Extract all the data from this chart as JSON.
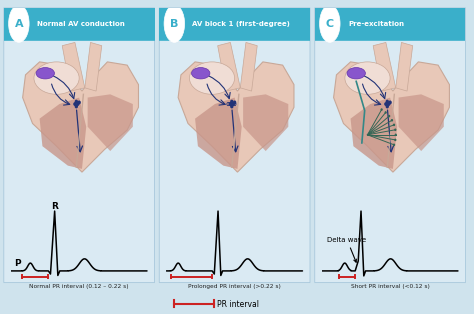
{
  "bg_color": "#cfe3ed",
  "panel_bg": "#daeaf3",
  "teal_header": "#3aafca",
  "header_text_color": "#ffffff",
  "panels": [
    {
      "label": "A",
      "title": "Normal AV conduction",
      "ecg_caption": "Normal PR interval (0.12 – 0.22 s)",
      "has_p_label": true,
      "has_r_label": true,
      "has_delta": false,
      "pr_type": "normal"
    },
    {
      "label": "B",
      "title": "AV block 1 (first-degree)",
      "ecg_caption": "Prolonged PR interval (>0.22 s)",
      "has_p_label": false,
      "has_r_label": false,
      "has_delta": false,
      "pr_type": "prolonged"
    },
    {
      "label": "C",
      "title": "Pre-excitation",
      "ecg_caption": "Short PR interval (<0.12 s)",
      "has_p_label": false,
      "has_r_label": false,
      "has_delta": true,
      "pr_type": "short"
    }
  ],
  "bottom_label": "PR interval",
  "bracket_color": "#cc2222",
  "heart_outer": "#e8c8b8",
  "heart_outer_border": "#c8a898",
  "heart_inner_light": "#f0ddd5",
  "heart_chamber": "#c8968a",
  "heart_dark": "#b07868",
  "sa_node_color": "#8855cc",
  "av_node_color": "#223377",
  "arrow_color": "#223377",
  "accessory_color": "#337766"
}
